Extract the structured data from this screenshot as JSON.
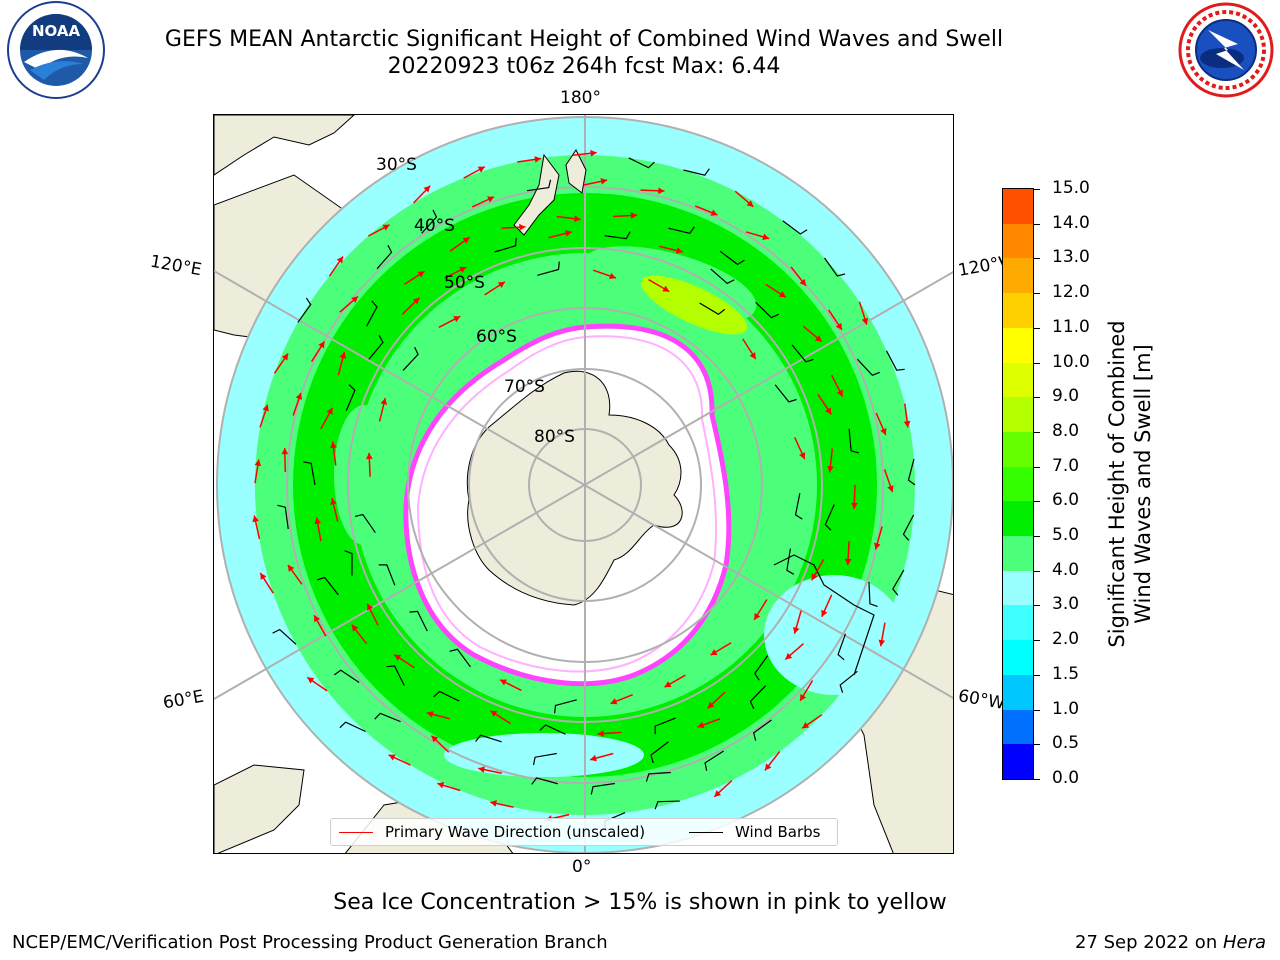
{
  "header": {
    "title_line1": "GEFS MEAN Antarctic Significant Height of Combined Wind Waves and Swell",
    "title_line2": "20220923 t06z 264h fcst   Max: 6.44"
  },
  "logos": {
    "left": "noaa-logo",
    "right": "national-weather-service-logo"
  },
  "map": {
    "projection": "south-polar-stereographic",
    "longitude_labels": {
      "top": "180°",
      "left_upper": "120°E",
      "right_upper": "120°W",
      "left_lower": "60°E",
      "right_lower": "60°W",
      "bottom": "0°"
    },
    "latitude_labels": [
      "30°S",
      "40°S",
      "50°S",
      "60°S",
      "70°S",
      "80°S"
    ],
    "legend": {
      "wave": {
        "label": "Primary Wave Direction (unscaled)",
        "color": "#ff0000"
      },
      "wind": {
        "label": "Wind Barbs",
        "color": "#000000"
      }
    }
  },
  "colorbar": {
    "label_line1": "Significant Height of Combined",
    "label_line2": "Wind Waves and Swell [m]",
    "ticks": [
      "0.0",
      "0.5",
      "1.0",
      "1.5",
      "2.0",
      "3.0",
      "4.0",
      "5.0",
      "6.0",
      "7.0",
      "8.0",
      "9.0",
      "10.0",
      "11.0",
      "12.0",
      "13.0",
      "14.0",
      "15.0"
    ],
    "colors": [
      "#0000ff",
      "#0070ff",
      "#00c8ff",
      "#00ffff",
      "#40ffff",
      "#99ffff",
      "#4cff7a",
      "#00ee00",
      "#33ff00",
      "#66ff00",
      "#b3ff00",
      "#ddff00",
      "#ffff00",
      "#ffd000",
      "#ffaa00",
      "#ff8800",
      "#ff5000",
      "#ff2000",
      "#ff0000"
    ]
  },
  "footnote": "Sea Ice Concentration > 15% is shown in pink to yellow",
  "credits": {
    "left": "NCEP/EMC/Verification Post Processing Product Generation Branch",
    "right_prefix": "27 Sep 2022 on ",
    "right_host": "Hera"
  }
}
